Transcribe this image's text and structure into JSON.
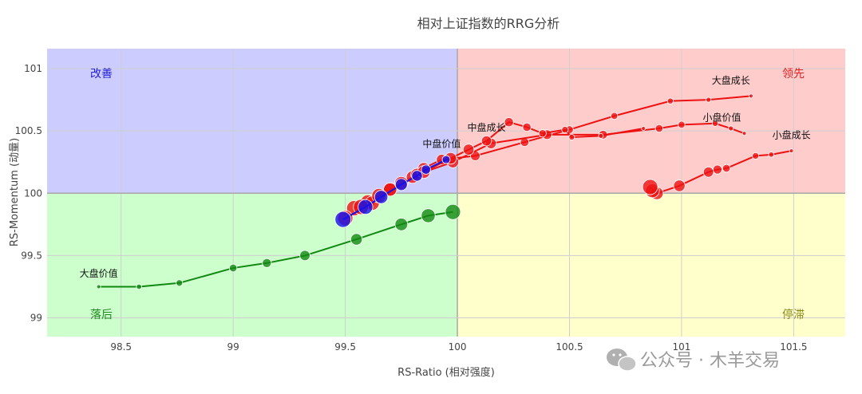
{
  "chart_data": {
    "type": "scatter",
    "title": "相对上证指数的RRG分析",
    "xlabel": "RS-Ratio (相对强度)",
    "ylabel": "RS-Momentum (动量)",
    "xlim": [
      98.17,
      101.73
    ],
    "ylim": [
      98.85,
      101.16
    ],
    "xticks": [
      98.5,
      99,
      99.5,
      100,
      100.5,
      101,
      101.5
    ],
    "yticks": [
      99,
      99.5,
      100,
      100.5,
      101
    ],
    "xtick_labels": [
      "98.5",
      "99",
      "99.5",
      "100",
      "100.5",
      "101",
      "101.5"
    ],
    "ytick_labels": [
      "99",
      "99.5",
      "100",
      "100.5",
      "101"
    ],
    "grid": true,
    "center": [
      100,
      100
    ],
    "quadrants": [
      {
        "label": "改善",
        "color": "#ccccff",
        "text_color": "#2323d8"
      },
      {
        "label": "领先",
        "color": "#ffcccc",
        "text_color": "#e02020"
      },
      {
        "label": "落后",
        "color": "#ccffcc",
        "text_color": "#1f8a1f"
      },
      {
        "label": "停滞",
        "color": "#ffffcc",
        "text_color": "#8a8a1a"
      }
    ],
    "series": [
      {
        "label": "大盘成长",
        "color": "#ee1111",
        "x": [
          99.54,
          99.6,
          99.7,
          99.8,
          99.85,
          99.93,
          100.08,
          100.3,
          100.5,
          100.7,
          100.95,
          101.12,
          101.31
        ],
        "y": [
          99.88,
          99.93,
          100.03,
          100.13,
          100.2,
          100.27,
          100.3,
          100.41,
          100.51,
          100.62,
          100.74,
          100.75,
          100.78
        ]
      },
      {
        "label": "小盘价值",
        "color": "#ee1111",
        "x": [
          99.5,
          99.62,
          99.7,
          99.82,
          99.98,
          100.15,
          100.4,
          100.65,
          100.9,
          101.0,
          101.15,
          101.22,
          101.28
        ],
        "y": [
          99.8,
          99.92,
          100.03,
          100.15,
          100.25,
          100.4,
          100.47,
          100.47,
          100.52,
          100.55,
          100.56,
          100.52,
          100.48
        ]
      },
      {
        "label": "中盘成长",
        "color": "#ee1111",
        "x": [
          99.57,
          99.65,
          99.75,
          99.85,
          99.97,
          100.05,
          100.13,
          100.23,
          100.31,
          100.38,
          100.48,
          100.51,
          100.64,
          100.83
        ],
        "y": [
          99.89,
          99.98,
          100.08,
          100.17,
          100.28,
          100.35,
          100.42,
          100.57,
          100.53,
          100.48,
          100.51,
          100.45,
          100.46,
          100.52
        ]
      },
      {
        "label": "小盘成长",
        "color": "#ee1111",
        "x": [
          101.49,
          101.4,
          101.33,
          101.2,
          101.16,
          101.12,
          100.99,
          100.89,
          100.87,
          100.86
        ],
        "y": [
          100.34,
          100.31,
          100.3,
          100.2,
          100.19,
          100.17,
          100.06,
          100.0,
          100.02,
          100.05
        ]
      },
      {
        "label": "中盘价值",
        "color": "#1111ee",
        "x": [
          99.49,
          99.59,
          99.66,
          99.75,
          99.82,
          99.86,
          99.95
        ],
        "y": [
          99.79,
          99.89,
          99.97,
          100.07,
          100.14,
          100.19,
          100.27
        ]
      },
      {
        "label": "大盘价值",
        "color": "#118811",
        "x": [
          98.4,
          98.58,
          98.76,
          99.0,
          99.15,
          99.32,
          99.55,
          99.75,
          99.87,
          99.98
        ],
        "y": [
          99.25,
          99.25,
          99.28,
          99.4,
          99.44,
          99.5,
          99.63,
          99.75,
          99.82,
          99.85
        ]
      }
    ],
    "annotations": [
      {
        "text": "大盘成长",
        "x": 101.22,
        "y": 100.88
      },
      {
        "text": "小盘价值",
        "x": 101.18,
        "y": 100.58
      },
      {
        "text": "中盘成长",
        "x": 100.13,
        "y": 100.5
      },
      {
        "text": "小盘成长",
        "x": 101.49,
        "y": 100.44
      },
      {
        "text": "中盘价值",
        "x": 99.93,
        "y": 100.37
      },
      {
        "text": "大盘价值",
        "x": 98.4,
        "y": 99.33
      }
    ]
  },
  "watermark": {
    "text": "公众号 · 木羊交易",
    "icon": "wechat-icon"
  }
}
